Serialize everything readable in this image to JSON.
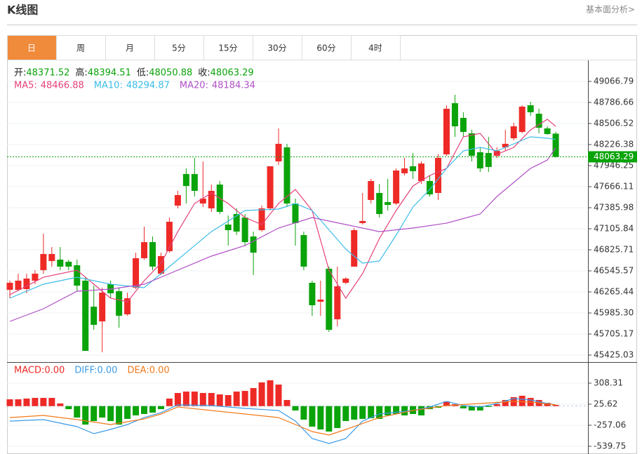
{
  "header": {
    "title": "K线图",
    "link": "基本面分析>"
  },
  "tabs": [
    "日",
    "周",
    "月",
    "5分",
    "15分",
    "30分",
    "60分",
    "4时"
  ],
  "active_tab": 0,
  "chart_data": [
    {
      "type": "candlestick",
      "up_color": "#ee2a27",
      "down_color": "#0aa30a",
      "ohlc_labels": [
        "开:",
        "高:",
        "低:",
        "收:"
      ],
      "open": [
        46293,
        46293,
        46303,
        46415,
        46555,
        46676,
        46695,
        46667,
        46620,
        46415,
        46069,
        45873,
        46368,
        46275,
        45967,
        46321,
        46714,
        46928,
        46508,
        46807,
        47414,
        47834,
        47834,
        47442,
        47377,
        47694,
        47162,
        47302,
        47255,
        47003,
        47087,
        47377,
        48002,
        48189,
        47442,
        47022,
        46387,
        46135,
        46574,
        45901,
        46387,
        46602,
        47181,
        47489,
        47582,
        47461,
        47442,
        47844,
        47937,
        47741,
        47741,
        47582,
        48096,
        48777,
        48581,
        48376,
        48124,
        48114,
        48077,
        48189,
        48310,
        48394,
        48749,
        48637,
        48441,
        48371.52
      ],
      "high": [
        46415,
        46508,
        46508,
        46555,
        47040,
        46863,
        46863,
        46695,
        46695,
        46461,
        46349,
        46321,
        46415,
        46321,
        46256,
        46788,
        47134,
        47003,
        46788,
        47255,
        47610,
        47909,
        48049,
        48002,
        47694,
        47741,
        47283,
        47377,
        47302,
        47068,
        47414,
        47937,
        48441,
        48236,
        47507,
        47068,
        46415,
        46415,
        46602,
        46602,
        46461,
        47115,
        47582,
        47769,
        47703,
        47769,
        47909,
        48049,
        48114,
        48002,
        47815,
        48096,
        48749,
        48889,
        48656,
        48422,
        48189,
        48329,
        48189,
        48422,
        48516,
        48749,
        48796,
        48703,
        48469,
        48394.51
      ],
      "low": [
        46181,
        46275,
        46247,
        46368,
        46508,
        46602,
        46555,
        46555,
        46275,
        45481,
        45761,
        45462,
        46181,
        45789,
        45948,
        46303,
        46695,
        46555,
        46490,
        46788,
        47377,
        47442,
        47535,
        47395,
        47330,
        47302,
        46882,
        47022,
        46882,
        46490,
        47068,
        47349,
        47956,
        47395,
        46882,
        46555,
        45948,
        45948,
        45733,
        45808,
        46368,
        46602,
        47162,
        47442,
        47255,
        47349,
        47423,
        47815,
        47769,
        47703,
        47535,
        47489,
        48077,
        48329,
        48329,
        48002,
        47862,
        47862,
        48049,
        48142,
        48282,
        48376,
        48609,
        48376,
        48357,
        48050.88
      ],
      "close": [
        46387,
        46415,
        46443,
        46508,
        46770,
        46770,
        46602,
        46602,
        46349,
        45481,
        45827,
        46256,
        46247,
        45948,
        46181,
        46714,
        46928,
        46602,
        46742,
        47199,
        47554,
        47675,
        47610,
        47507,
        47610,
        47330,
        47087,
        47068,
        46928,
        46788,
        47377,
        47937,
        48236,
        47442,
        47181,
        46602,
        46088,
        46163,
        45761,
        46340,
        46443,
        47087,
        47209,
        47741,
        47302,
        47423,
        47881,
        47909,
        47872,
        47974,
        47563,
        48049,
        48703,
        48469,
        48394,
        48077,
        47909,
        47928,
        48142,
        48236,
        48469,
        48731,
        48656,
        48450,
        48366,
        48063.29
      ],
      "lines": [
        {
          "name": "MA5:",
          "color": "#e5407a",
          "x": [
            0,
            4,
            8,
            10,
            12,
            14,
            16,
            18,
            20,
            22,
            24,
            26,
            28,
            30,
            32,
            34,
            36,
            38,
            40,
            42,
            44,
            46,
            48,
            50,
            52,
            54,
            56,
            58,
            60,
            62,
            64,
            65
          ],
          "values": [
            46228,
            46461,
            46555,
            46368,
            46181,
            46135,
            46415,
            46648,
            47068,
            47442,
            47582,
            47442,
            47255,
            47162,
            47442,
            47629,
            47349,
            46555,
            46181,
            46508,
            46975,
            47349,
            47675,
            47815,
            47909,
            48329,
            48376,
            48096,
            48189,
            48422,
            48563,
            48466.88
          ]
        },
        {
          "name": "MA10:",
          "color": "#3bbde8",
          "x": [
            0,
            4,
            8,
            12,
            16,
            20,
            24,
            28,
            32,
            34,
            36,
            40,
            42,
            44,
            46,
            48,
            50,
            52,
            54,
            56,
            58,
            60,
            62,
            64,
            65
          ],
          "values": [
            46181,
            46368,
            46461,
            46368,
            46321,
            46695,
            47068,
            47349,
            47367,
            47442,
            47349,
            46835,
            46648,
            46676,
            47022,
            47395,
            47629,
            47909,
            48142,
            48189,
            48142,
            48236,
            48329,
            48310,
            48294.87
          ]
        },
        {
          "name": "MA20:",
          "color": "#b04fc6",
          "x": [
            0,
            4,
            8,
            12,
            16,
            20,
            24,
            28,
            32,
            36,
            40,
            44,
            48,
            52,
            56,
            58,
            60,
            62,
            64,
            65
          ],
          "values": [
            45873,
            46041,
            46275,
            46303,
            46368,
            46555,
            46742,
            46882,
            47115,
            47255,
            47162,
            47068,
            47115,
            47181,
            47302,
            47535,
            47722,
            47909,
            48021,
            48184.34
          ]
        }
      ],
      "ylim": [
        45331.6,
        49356.3
      ],
      "yticks": [
        49066.79,
        48786.66,
        48506.52,
        48226.38,
        47946.25,
        47666.11,
        47385.98,
        47105.84,
        46825.71,
        46545.57,
        46265.44,
        {
          "value": 45985.3,
          "label": "45985.30"
        },
        45705.17,
        45425.03
      ],
      "grid": true
    },
    {
      "type": "macd",
      "up_color": "#ee2a27",
      "down_color": "#0aa30a",
      "legend": [
        {
          "name": "MACD:",
          "value": 0,
          "label": "0.00",
          "color": "#ee2a27"
        },
        {
          "name": "DIFF:",
          "value": 0,
          "label": "0.00",
          "color": "#3b9be8"
        },
        {
          "name": "DEA:",
          "value": 0,
          "label": "0.00",
          "color": "#f07a1a"
        }
      ],
      "values": [
        91,
        91,
        101,
        110,
        110,
        110,
        35,
        -41,
        -154,
        -248,
        -201,
        -154,
        -201,
        -248,
        -172,
        -125,
        -106,
        -88,
        -41,
        101,
        176,
        195,
        195,
        176,
        176,
        157,
        148,
        195,
        204,
        242,
        318,
        346,
        289,
        82,
        -59,
        -182,
        -276,
        -314,
        -342,
        -295,
        -201,
        -182,
        -172,
        -163,
        -172,
        -125,
        -106,
        -125,
        -106,
        -125,
        -41,
        -22,
        63,
        25,
        -31,
        -59,
        -59,
        -12,
        25,
        82,
        120,
        139,
        110,
        82,
        44,
        16
      ],
      "lines": [
        {
          "name": "DIFF",
          "color": "#3b9be8",
          "x": [
            0,
            4,
            8,
            10,
            12,
            14,
            16,
            18,
            20,
            24,
            28,
            32,
            34,
            36,
            38,
            40,
            42,
            44,
            48,
            50,
            52,
            54,
            56,
            58,
            60,
            62,
            64,
            65
          ],
          "values": [
            -201,
            -182,
            -276,
            -370,
            -314,
            -248,
            -154,
            -88,
            16,
            7,
            -31,
            -59,
            -201,
            -436,
            -502,
            -436,
            -201,
            -106,
            -59,
            -12,
            63,
            7,
            -12,
            35,
            101,
            82,
            35,
            16
          ]
        },
        {
          "name": "DEA",
          "color": "#f07a1a",
          "x": [
            0,
            4,
            8,
            12,
            16,
            18,
            20,
            24,
            28,
            32,
            34,
            36,
            38,
            40,
            44,
            48,
            52,
            56,
            60,
            62,
            65
          ],
          "values": [
            -154,
            -125,
            -182,
            -248,
            -172,
            -106,
            -12,
            -59,
            -106,
            -154,
            -248,
            -342,
            -389,
            -314,
            -154,
            -59,
            7,
            35,
            63,
            54,
            16
          ]
        }
      ],
      "ylim": [
        -643.4,
        581.6
      ],
      "yticks": [
        308.31,
        25.62,
        -257.06,
        -539.75
      ]
    }
  ]
}
